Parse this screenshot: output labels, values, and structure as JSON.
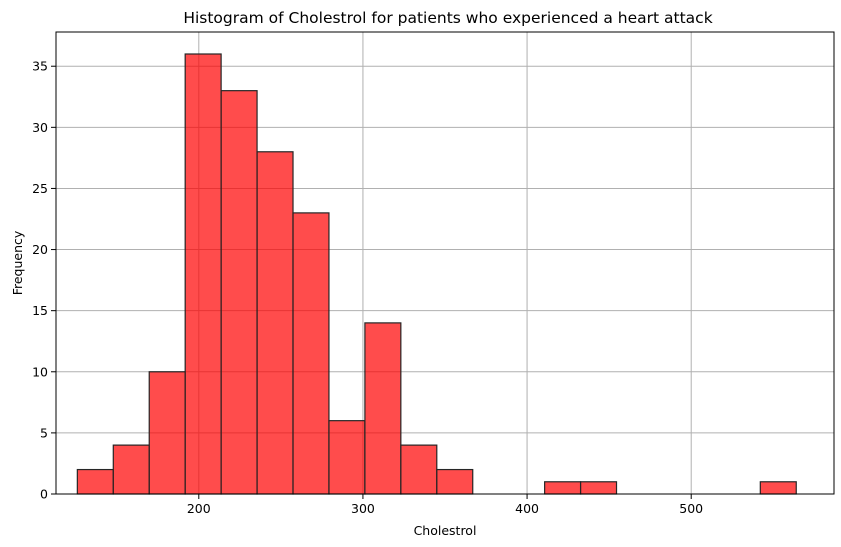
{
  "chart_data": {
    "type": "bar",
    "subtype": "histogram",
    "title": "Histogram of Cholestrol for patients who experienced a heart attack",
    "xlabel": "Cholestrol",
    "ylabel": "Frequency",
    "xlim": [
      113,
      587
    ],
    "ylim": [
      0,
      37.8
    ],
    "xticks": [
      200,
      300,
      400,
      500
    ],
    "yticks": [
      0,
      5,
      10,
      15,
      20,
      25,
      30,
      35
    ],
    "bin_start": 126,
    "bin_width": 21.9,
    "counts": [
      2,
      4,
      10,
      36,
      33,
      28,
      23,
      6,
      14,
      4,
      2,
      0,
      0,
      1,
      1,
      0,
      0,
      0,
      0,
      1
    ],
    "bar_color": "#ff0000",
    "bar_alpha": 0.7,
    "edge_color": "#000000",
    "grid": true
  }
}
